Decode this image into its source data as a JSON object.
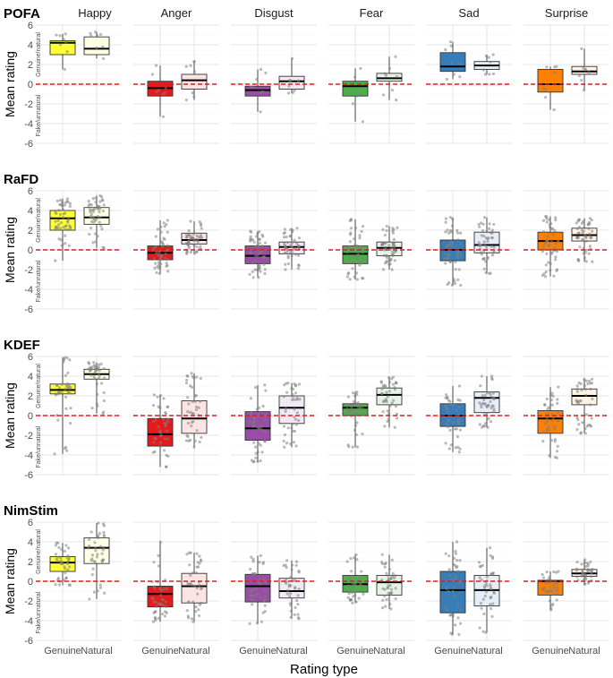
{
  "chart_data": {
    "type": "boxplot",
    "xlabel": "Rating type",
    "ylabel": "Mean rating",
    "ylim": [
      -6,
      6
    ],
    "yticks": [
      -6,
      -4,
      -2,
      0,
      2,
      4,
      6
    ],
    "reference_line": 0,
    "inner_labels": {
      "top": "Genuine/natural",
      "bottom": "Fake/unnatural"
    },
    "categories": [
      "Genuine",
      "Natural"
    ],
    "emotions": [
      "Happy",
      "Anger",
      "Disgust",
      "Fear",
      "Sad",
      "Surprise"
    ],
    "colors": {
      "Happy": {
        "Genuine": "#ffff33",
        "Natural": "#ffffe5"
      },
      "Anger": {
        "Genuine": "#e41a1c",
        "Natural": "#fce4e4"
      },
      "Disgust": {
        "Genuine": "#984ea3",
        "Natural": "#f1e9f3"
      },
      "Fear": {
        "Genuine": "#4daf4a",
        "Natural": "#e6f4e5"
      },
      "Sad": {
        "Genuine": "#377eb8",
        "Natural": "#e6eef7"
      },
      "Surprise": {
        "Genuine": "#ff7f00",
        "Natural": "#fff2e5"
      }
    },
    "datasets": [
      {
        "name": "POFA",
        "n": 8,
        "boxes": {
          "Happy": {
            "Genuine": [
              1.5,
              3.0,
              4.2,
              4.4,
              5.1
            ],
            "Natural": [
              2.6,
              3.0,
              3.6,
              4.8,
              5.3
            ]
          },
          "Anger": {
            "Genuine": [
              -3.3,
              -1.2,
              -0.4,
              0.3,
              1.9
            ],
            "Natural": [
              -1.6,
              -0.5,
              0.4,
              1.0,
              2.3
            ]
          },
          "Disgust": {
            "Genuine": [
              -2.8,
              -1.2,
              -0.6,
              -0.2,
              1.5
            ],
            "Natural": [
              -0.9,
              -0.5,
              0.3,
              0.8,
              2.6
            ]
          },
          "Fear": {
            "Genuine": [
              -3.8,
              -1.2,
              -0.2,
              0.3,
              1.6
            ],
            "Natural": [
              -1.6,
              0.3,
              0.6,
              1.1,
              2.8
            ]
          },
          "Sad": {
            "Genuine": [
              0.5,
              1.3,
              1.8,
              3.2,
              4.3
            ],
            "Natural": [
              1.0,
              1.5,
              1.9,
              2.3,
              3.0
            ]
          },
          "Surprise": {
            "Genuine": [
              -2.6,
              -0.8,
              0.0,
              1.5,
              1.8
            ],
            "Natural": [
              -0.6,
              1.0,
              1.3,
              1.8,
              3.6
            ]
          }
        }
      },
      {
        "name": "RaFD",
        "n": 50,
        "boxes": {
          "Happy": {
            "Genuine": [
              -1.1,
              2.0,
              3.2,
              4.0,
              5.2
            ],
            "Natural": [
              0.2,
              2.6,
              3.3,
              4.3,
              5.5
            ]
          },
          "Anger": {
            "Genuine": [
              -2.4,
              -1.0,
              -0.3,
              0.4,
              3.0
            ],
            "Natural": [
              -0.4,
              0.6,
              1.0,
              1.7,
              2.9
            ]
          },
          "Disgust": {
            "Genuine": [
              -2.8,
              -1.4,
              -0.6,
              0.4,
              1.9
            ],
            "Natural": [
              -2.0,
              -0.4,
              0.3,
              0.8,
              2.2
            ]
          },
          "Fear": {
            "Genuine": [
              -3.0,
              -1.4,
              -0.4,
              0.4,
              3.1
            ],
            "Natural": [
              -2.0,
              -0.6,
              0.2,
              0.8,
              2.4
            ]
          },
          "Sad": {
            "Genuine": [
              -3.6,
              -1.1,
              0.0,
              1.0,
              3.3
            ],
            "Natural": [
              -2.4,
              -0.3,
              0.5,
              1.8,
              3.3
            ]
          },
          "Surprise": {
            "Genuine": [
              -2.7,
              0.0,
              0.9,
              1.8,
              3.4
            ],
            "Natural": [
              -1.2,
              0.9,
              1.5,
              2.2,
              3.2
            ]
          }
        }
      },
      {
        "name": "KDEF",
        "n": 40,
        "boxes": {
          "Happy": {
            "Genuine": [
              -3.9,
              2.2,
              2.6,
              3.2,
              5.9
            ],
            "Natural": [
              0.2,
              3.7,
              4.2,
              4.7,
              5.4
            ]
          },
          "Anger": {
            "Genuine": [
              -5.2,
              -3.1,
              -1.9,
              -0.3,
              2.1
            ],
            "Natural": [
              -3.2,
              -1.8,
              -0.3,
              1.5,
              4.3
            ]
          },
          "Disgust": {
            "Genuine": [
              -4.7,
              -2.5,
              -1.3,
              0.4,
              3.1
            ],
            "Natural": [
              -3.2,
              -0.8,
              0.8,
              2.0,
              3.3
            ]
          },
          "Fear": {
            "Genuine": [
              -3.2,
              0.0,
              0.8,
              1.2,
              2.4
            ],
            "Natural": [
              -1.2,
              1.1,
              2.1,
              2.8,
              3.9
            ]
          },
          "Sad": {
            "Genuine": [
              -3.7,
              -1.1,
              0.0,
              1.2,
              3.0
            ],
            "Natural": [
              -1.2,
              0.3,
              1.8,
              2.4,
              4.0
            ]
          },
          "Surprise": {
            "Genuine": [
              -4.3,
              -1.8,
              -0.3,
              0.5,
              2.9
            ],
            "Natural": [
              -1.8,
              1.1,
              2.0,
              2.7,
              3.7
            ]
          }
        }
      },
      {
        "name": "NimStim",
        "n": 40,
        "boxes": {
          "Happy": {
            "Genuine": [
              -0.4,
              1.0,
              1.9,
              2.5,
              3.9
            ],
            "Natural": [
              -1.8,
              1.8,
              3.4,
              4.4,
              5.9
            ]
          },
          "Anger": {
            "Genuine": [
              -4.1,
              -2.6,
              -1.3,
              -0.5,
              4.0
            ],
            "Natural": [
              -4.1,
              -2.2,
              -0.5,
              0.8,
              2.9
            ]
          },
          "Disgust": {
            "Genuine": [
              -4.3,
              -2.1,
              -0.5,
              0.7,
              2.6
            ],
            "Natural": [
              -3.8,
              -1.7,
              -1.0,
              0.3,
              2.1
            ]
          },
          "Fear": {
            "Genuine": [
              -2.2,
              -1.1,
              -0.3,
              0.6,
              2.7
            ],
            "Natural": [
              -2.8,
              -1.4,
              -0.1,
              0.6,
              2.7
            ]
          },
          "Sad": {
            "Genuine": [
              -5.4,
              -3.2,
              -0.9,
              1.0,
              4.0
            ],
            "Natural": [
              -5.2,
              -2.5,
              -0.9,
              0.6,
              3.4
            ]
          },
          "Surprise": {
            "Genuine": [
              -2.9,
              -1.4,
              0.0,
              0.1,
              1.0
            ],
            "Natural": [
              -0.3,
              0.5,
              0.8,
              1.2,
              2.2
            ]
          }
        }
      }
    ]
  }
}
